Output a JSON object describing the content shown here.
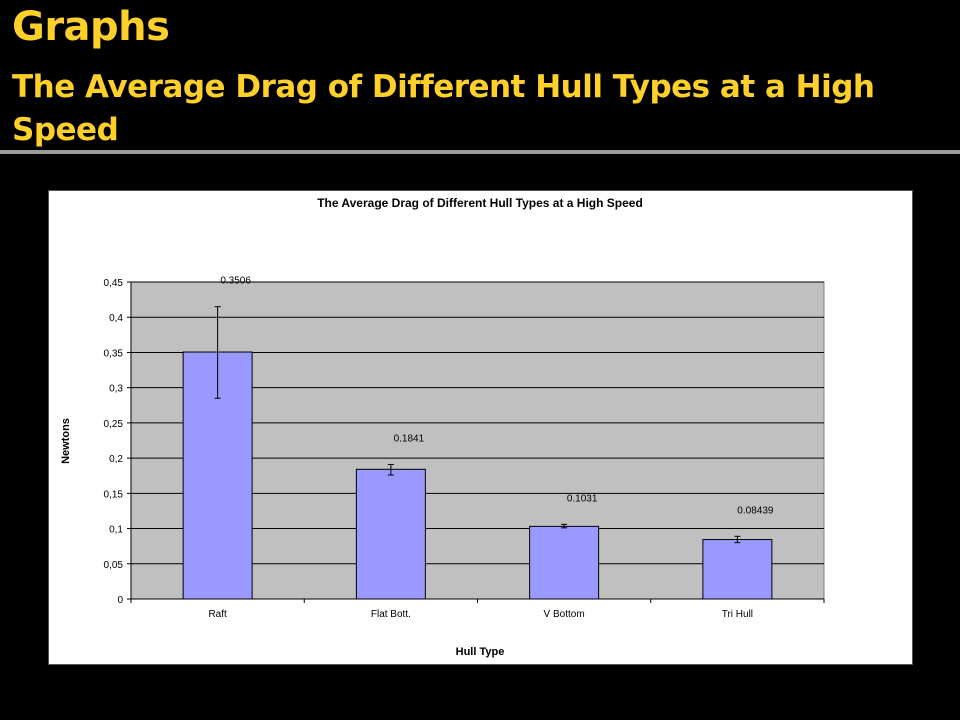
{
  "slide": {
    "title": "Graphs",
    "subtitle": "The Average Drag of Different Hull Types at a High Speed"
  },
  "colors": {
    "background": "#000000",
    "title": "#ffd02a",
    "plot_area": "#c0c0c0",
    "bar_fill": "#9999ff",
    "bar_stroke": "#000000"
  },
  "chart_data": {
    "type": "bar",
    "title": "The Average Drag of Different Hull Types at a High Speed",
    "xlabel": "Hull Type",
    "ylabel": "Newtons",
    "categories": [
      "Raft",
      "Flat Bott.",
      "V Bottom",
      "Tri Hull"
    ],
    "values": [
      0.3506,
      0.1841,
      0.1031,
      0.08439
    ],
    "data_labels": [
      "0.3506",
      "0.1841",
      "0.1031",
      "0.08439"
    ],
    "error_bars": [
      {
        "low": 0.285,
        "high": 0.415
      },
      {
        "low": 0.176,
        "high": 0.191
      },
      {
        "low": 0.101,
        "high": 0.106
      },
      {
        "low": 0.08,
        "high": 0.089
      }
    ],
    "ylim": [
      0,
      0.45
    ],
    "yticks": [
      0,
      0.05,
      0.1,
      0.15,
      0.2,
      0.25,
      0.3,
      0.35,
      0.4,
      0.45
    ],
    "ytick_labels": [
      "0",
      "0,05",
      "0,1",
      "0,15",
      "0,2",
      "0,25",
      "0,3",
      "0,35",
      "0,4",
      "0,45"
    ],
    "grid": true,
    "legend": "none"
  }
}
